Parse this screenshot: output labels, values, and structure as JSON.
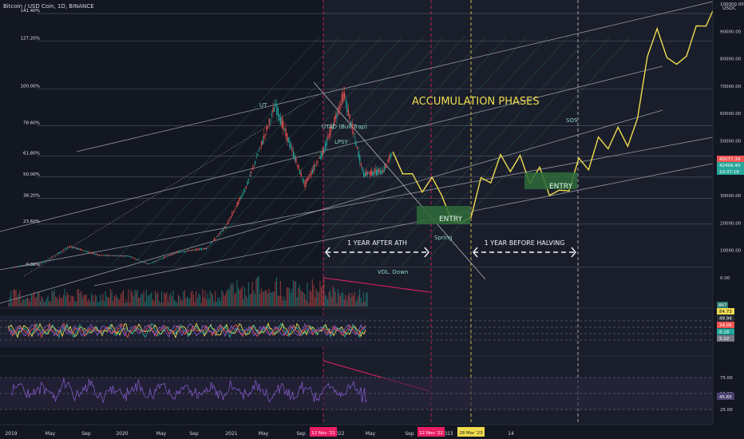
{
  "header": {
    "title": "Bitcoin / USD Coin, 1D, BINANCE",
    "price_top": "100000.00",
    "unit": "USDC"
  },
  "colors": {
    "background": "#131722",
    "up": "#26a69a",
    "down": "#ef5350",
    "projection": "#f0dc4e",
    "entry_box": "#2e6b3a",
    "channel": "#b2b5be",
    "fan": "#2e9e6e",
    "ath_marker": "#e91e63",
    "halving_marker": "#f0dc4e",
    "rsi": "#7e57c2"
  },
  "chart_data": [
    {
      "type": "line",
      "title": "Bitcoin / USD Coin, 1D, BINANCE",
      "series": [
        {
          "name": "",
          "x": [
            "2019-01",
            "2019-04",
            "2019-07",
            "2019-10",
            "2020-01",
            "2020-03",
            "2020-06",
            "2020-09",
            "2020-11",
            "2021-01",
            "2021-04",
            "2021-07",
            "2021-09",
            "2021-11",
            "2022-01",
            "2022-03",
            "2022-04"
          ],
          "values": [
            3700,
            5200,
            11500,
            8200,
            8000,
            5000,
            9300,
            10800,
            19000,
            33000,
            63000,
            34000,
            47000,
            67000,
            38000,
            39000,
            46000
          ]
        },
        {
          "name": "",
          "x": [
            "2022-04",
            "2022-06",
            "2022-09",
            "2022-11",
            "2023-03",
            "2023-09",
            "2024-03",
            "2024-04",
            "2024-07",
            "2024-09",
            "2024-11",
            "2025-01"
          ],
          "values": [
            46000,
            38000,
            30000,
            20000,
            45000,
            32000,
            55000,
            48000,
            91000,
            78000,
            92000,
            100000
          ]
        }
      ],
      "fib_levels": [
        {
          "label": "0.00%",
          "price": 3850
        },
        {
          "label": "23.60%",
          "price": 19600
        },
        {
          "label": "38.20%",
          "price": 29000
        },
        {
          "label": "50.00%",
          "price": 36800
        },
        {
          "label": "61.80%",
          "price": 44500
        },
        {
          "label": "78.60%",
          "price": 55500
        },
        {
          "label": "100.00%",
          "price": 69000
        },
        {
          "label": "127.20%",
          "price": 86500
        },
        {
          "label": "141.40%",
          "price": 96500
        }
      ],
      "price_axis_ticks": [
        "100000.00",
        "90000.00",
        "80000.00",
        "70000.00",
        "60000.00",
        "50000.00",
        "40000.00",
        "30000.00",
        "20000.00",
        "10000.00",
        "0.00"
      ],
      "price_tags": [
        "45077.39",
        "42499.49",
        "10:37:18"
      ],
      "ylim": [
        -1200,
        100000
      ]
    },
    {
      "type": "line",
      "title": "",
      "values_shown": [
        "84.73",
        "49.94",
        "24.05",
        "6.18",
        "5.22"
      ]
    },
    {
      "type": "line",
      "title": "",
      "levels": [
        "75.00",
        "50.00",
        "25.00"
      ],
      "values_shown": [
        "45.65"
      ]
    }
  ],
  "annotations": {
    "ut": "UT",
    "utad": "UTAD (Bull Trap)",
    "lpsy": "LPSY",
    "accumulation": "ACCUMULATION PHASES",
    "sos": "SOS",
    "entry": "ENTRY",
    "spring": "Spring",
    "year_after_ath": "1 YEAR AFTER ATH",
    "year_before_halving": "1 YEAR BEFORE HALVING",
    "vol_down": "VOL. Down"
  },
  "volume": {
    "current_value": "867"
  },
  "time_axis": {
    "labels": [
      "2019",
      "May",
      "Sep",
      "2020",
      "May",
      "Sep",
      "2021",
      "May",
      "Sep",
      "2022",
      "May",
      "Sep",
      "2023",
      "14"
    ],
    "highlights": [
      "12 Nov '21",
      "12 Nov '22",
      "28 Mar '23"
    ]
  }
}
